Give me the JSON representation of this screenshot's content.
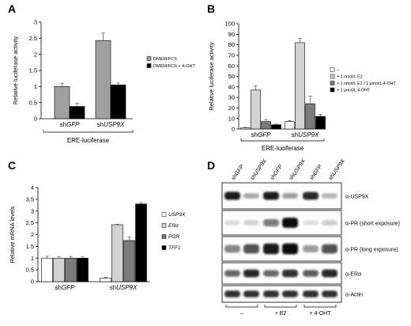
{
  "panels": [
    {
      "letter": "A"
    },
    {
      "letter": "B"
    },
    {
      "letter": "C"
    },
    {
      "letter": "D"
    }
  ],
  "colors": {
    "white_bar": "#ffffff",
    "light_gray": "#d2d2d2",
    "mid_gray": "#a0a0a0",
    "dark_gray": "#7a7a7a",
    "black": "#000000"
  },
  "chart_data": [
    {
      "panel": "A",
      "type": "bar",
      "ylabel": "Relative luciferase activity",
      "ylim": [
        0,
        3
      ],
      "yticks": [
        "0",
        "0.5",
        "1",
        "1.5",
        "2",
        "2.5",
        "3"
      ],
      "groups": [
        {
          "prefix": "sh",
          "gene": "GFP"
        },
        {
          "prefix": "sh",
          "gene": "USP9X"
        }
      ],
      "group_caption": "ERE-luciferase",
      "legend_placement": "right",
      "series": [
        {
          "name": "DMEM/FCS",
          "color": "#a0a0a0",
          "values": [
            1.0,
            2.43
          ],
          "errors": [
            0.1,
            0.23
          ]
        },
        {
          "name": "DMEM/FCS + 4-OHT",
          "color": "#000000",
          "values": [
            0.38,
            1.05
          ],
          "errors": [
            0.1,
            0.06
          ]
        }
      ]
    },
    {
      "panel": "B",
      "type": "bar",
      "ylabel": "Relative luciferase activity",
      "ylim": [
        0,
        100
      ],
      "yticks": [
        "0",
        "10",
        "20",
        "30",
        "40",
        "50",
        "60",
        "70",
        "80",
        "90",
        "100"
      ],
      "groups": [
        {
          "prefix": "sh",
          "gene": "GFP"
        },
        {
          "prefix": "sh",
          "gene": "USP9X"
        }
      ],
      "group_caption": "ERE-luciferase",
      "legend_placement": "right",
      "series": [
        {
          "name": "–",
          "color": "#ffffff",
          "values": [
            1,
            7
          ],
          "errors": [
            0.5,
            1
          ]
        },
        {
          "name": "+ 1 nmol/L E2",
          "color": "#d2d2d2",
          "values": [
            37,
            82
          ],
          "errors": [
            4,
            4
          ]
        },
        {
          "name": "+ 1 nmol/L E2 / 1 μmol/L 4-OHT",
          "color": "#7a7a7a",
          "values": [
            7,
            24
          ],
          "errors": [
            2,
            7
          ]
        },
        {
          "name": "+ 1 μmol/L 4-OHT",
          "color": "#000000",
          "values": [
            4,
            12
          ],
          "errors": [
            0.6,
            2
          ]
        }
      ]
    },
    {
      "panel": "C",
      "type": "bar",
      "ylabel": "Relative mRNA levels",
      "ylim": [
        0,
        4
      ],
      "yticks": [
        "0",
        "0.5",
        "1",
        "1.5",
        "2",
        "2.5",
        "3",
        "3.5",
        "4"
      ],
      "groups": [
        {
          "prefix": "sh",
          "gene": "GFP"
        },
        {
          "prefix": "sh",
          "gene": "USP9X"
        }
      ],
      "legend_placement": "right",
      "series": [
        {
          "name": "USP9X",
          "color": "#ffffff",
          "values": [
            1.0,
            0.15
          ],
          "errors": [
            0.08,
            0.03
          ]
        },
        {
          "name": "ERα",
          "color": "#d2d2d2",
          "values": [
            1.0,
            2.42
          ],
          "errors": [
            0.06,
            0.02
          ]
        },
        {
          "name": "PGR",
          "color": "#7a7a7a",
          "values": [
            1.0,
            1.75
          ],
          "errors": [
            0.07,
            0.14
          ]
        },
        {
          "name": "TFF1",
          "color": "#000000",
          "values": [
            1.0,
            3.3
          ],
          "errors": [
            0.05,
            0.06
          ]
        }
      ]
    }
  ],
  "western": {
    "lane_labels": [
      {
        "prefix": "sh",
        "gene": "GFP"
      },
      {
        "prefix": "sh",
        "gene": "USP9X"
      },
      {
        "prefix": "sh",
        "gene": "GFP"
      },
      {
        "prefix": "sh",
        "gene": "USP9X"
      },
      {
        "prefix": "sh",
        "gene": "GFP"
      },
      {
        "prefix": "sh",
        "gene": "USP9X"
      }
    ],
    "blots": [
      {
        "label": "α-USP9X",
        "intensity": [
          0.95,
          0.3,
          0.95,
          0.35,
          0.9,
          0.25
        ]
      },
      {
        "label": "α-PR (short exposure)",
        "intensity": [
          0.05,
          0.1,
          0.5,
          1.0,
          0.04,
          0.12
        ]
      },
      {
        "label": "α-PR (long exposure)",
        "intensity": [
          0.45,
          0.7,
          0.95,
          1.0,
          0.35,
          0.7
        ]
      },
      {
        "label": "α-ERα",
        "intensity": [
          0.6,
          0.9,
          0.6,
          0.85,
          0.65,
          0.9
        ]
      },
      {
        "label": "α-Actin",
        "intensity": [
          0.85,
          0.85,
          0.85,
          0.85,
          0.85,
          0.85
        ]
      }
    ],
    "treatments": [
      "–",
      "+ E2",
      "+ 4-OHT"
    ]
  }
}
